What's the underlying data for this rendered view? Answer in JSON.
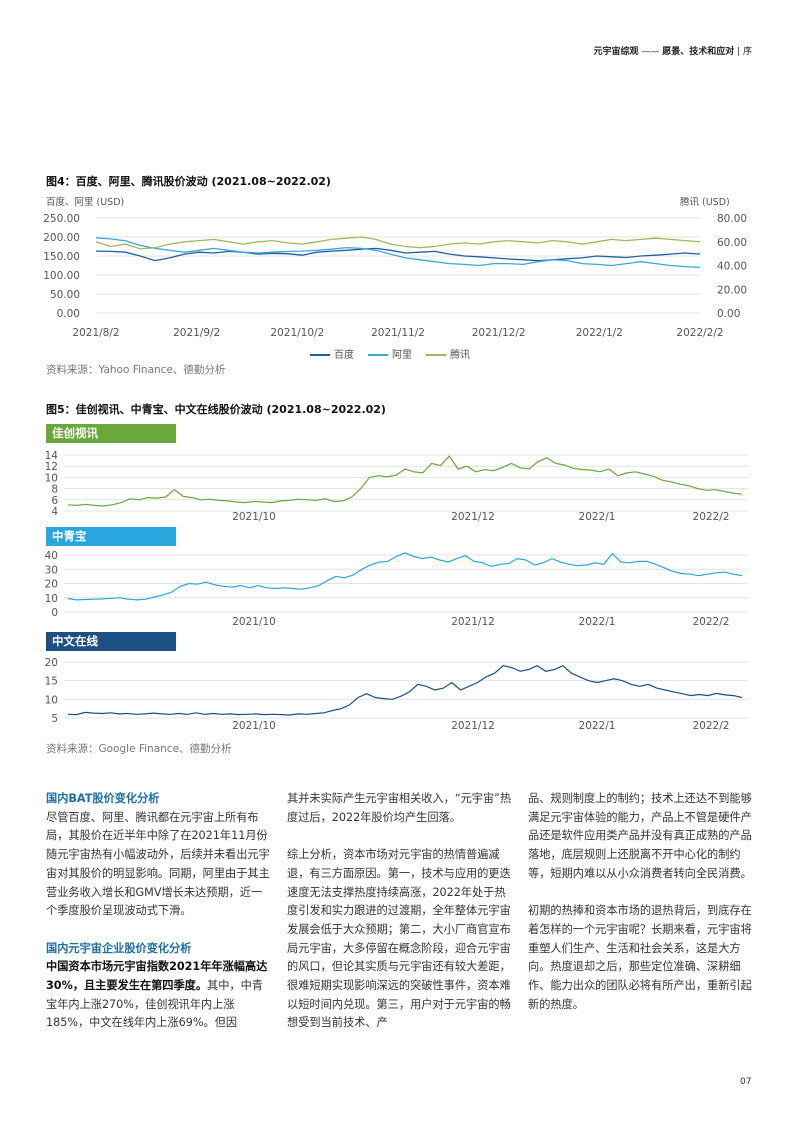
{
  "header": {
    "left": "元宇宙综观",
    "dash": " —— ",
    "right": "愿景、技术和应对",
    "sep": " | ",
    "section": "序"
  },
  "fig4": {
    "title": "图4：百度、阿里、腾讯股价波动 (2021.08~2022.02)",
    "left_axis_label": "百度、阿里 (USD)",
    "right_axis_label": "腾讯 (USD)",
    "source": "资料来源：Yahoo Finance、德勤分析"
  },
  "fig5": {
    "title": "图5：佳创视讯、中青宝、中文在线股价波动 (2021.08~2022.02)",
    "source": "资料来源：Google Finance、德勤分析",
    "tags": [
      "佳创视讯",
      "中青宝",
      "中文在线"
    ]
  },
  "colors": {
    "baidu": "#1f5f9e",
    "ali": "#3aa6dc",
    "tencent": "#9bbb59",
    "tag1": "#6aa83c",
    "tag2": "#29a6de",
    "tag3": "#1c4f84",
    "heading": "#1d6fa5",
    "grid": "#e3e3e3"
  },
  "chart_data": [
    {
      "type": "line",
      "title": "图4：百度、阿里、腾讯股价波动 (2021.08~2022.02)",
      "x_tick_labels": [
        "2021/8/2",
        "2021/9/2",
        "2021/10/2",
        "2021/11/2",
        "2021/12/2",
        "2022/1/2",
        "2022/2/2"
      ],
      "y_left_ticks": [
        "250.00",
        "200.00",
        "150.00",
        "100.00",
        "50.00",
        "0.00"
      ],
      "y_left_range": [
        0,
        250
      ],
      "y_right_ticks": [
        "80.00",
        "60.00",
        "40.00",
        "20.00",
        "0.00"
      ],
      "y_right_range": [
        0,
        80
      ],
      "grid": true,
      "legend": [
        "百度",
        "阿里",
        "腾讯"
      ],
      "series": [
        {
          "name": "百度",
          "axis": "left",
          "values": [
            163,
            162,
            160,
            150,
            138,
            145,
            155,
            160,
            158,
            162,
            160,
            155,
            157,
            156,
            152,
            160,
            163,
            165,
            168,
            170,
            165,
            158,
            160,
            162,
            155,
            150,
            148,
            145,
            142,
            140,
            138,
            140,
            143,
            145,
            150,
            148,
            146,
            150,
            152,
            155,
            158,
            155
          ]
        },
        {
          "name": "阿里",
          "axis": "left",
          "values": [
            198,
            195,
            190,
            178,
            170,
            165,
            160,
            165,
            170,
            165,
            160,
            158,
            160,
            162,
            163,
            165,
            168,
            172,
            170,
            165,
            155,
            145,
            140,
            135,
            130,
            128,
            125,
            130,
            130,
            128,
            135,
            140,
            138,
            130,
            128,
            125,
            130,
            135,
            130,
            125,
            122,
            120
          ]
        },
        {
          "name": "腾讯",
          "axis": "right",
          "values": [
            60,
            56,
            58,
            54,
            55,
            58,
            60,
            61,
            62,
            60,
            58,
            60,
            61,
            59,
            58,
            60,
            62,
            63,
            64,
            62,
            58,
            56,
            55,
            56,
            58,
            59,
            58,
            60,
            61,
            60,
            59,
            61,
            60,
            58,
            60,
            62,
            61,
            62,
            63,
            62,
            61,
            60
          ]
        }
      ]
    },
    {
      "type": "line",
      "title": "佳创视讯",
      "x_tick_labels": [
        "2021/10",
        "2021/12",
        "2022/1",
        "2022/2"
      ],
      "y_ticks": [
        "14",
        "12",
        "10",
        "8",
        "6",
        "4"
      ],
      "y_range": [
        4,
        14
      ],
      "grid": true,
      "series": [
        {
          "name": "佳创视讯",
          "values": [
            5.1,
            5.0,
            5.2,
            5.0,
            4.9,
            5.1,
            5.5,
            6.2,
            6.0,
            6.4,
            6.3,
            6.5,
            7.8,
            6.6,
            6.4,
            6.0,
            6.1,
            5.9,
            5.8,
            5.6,
            5.5,
            5.7,
            5.6,
            5.5,
            5.8,
            5.9,
            6.1,
            6.0,
            5.9,
            6.2,
            5.7,
            5.8,
            6.5,
            8.0,
            10.0,
            10.3,
            10.1,
            10.4,
            11.5,
            11.0,
            10.8,
            12.5,
            12.1,
            13.8,
            11.5,
            12.0,
            11.0,
            11.4,
            11.2,
            11.8,
            12.5,
            11.7,
            11.5,
            12.8,
            13.5,
            12.5,
            12.2,
            11.6,
            11.4,
            11.3,
            11.0,
            11.5,
            10.3,
            10.8,
            11.0,
            10.6,
            10.2,
            9.5,
            9.2,
            8.8,
            8.5,
            8.0,
            7.7,
            7.8,
            7.5,
            7.2,
            7.0
          ]
        }
      ]
    },
    {
      "type": "line",
      "title": "中青宝",
      "x_tick_labels": [
        "2021/10",
        "2021/12",
        "2022/1",
        "2022/2"
      ],
      "y_ticks": [
        "40",
        "30",
        "20",
        "10",
        "0"
      ],
      "y_range": [
        0,
        40
      ],
      "grid": true,
      "series": [
        {
          "name": "中青宝",
          "values": [
            9.5,
            8.5,
            8.8,
            9.0,
            9.2,
            9.6,
            10.0,
            9.0,
            8.5,
            9.0,
            10.5,
            12.0,
            14.0,
            18.0,
            20.0,
            19.5,
            21.0,
            19.0,
            18.0,
            17.5,
            18.5,
            17.0,
            18.5,
            17.0,
            16.5,
            17.0,
            16.5,
            16.0,
            17.0,
            18.5,
            22.0,
            25.0,
            24.0,
            26.0,
            30.0,
            33.0,
            35.0,
            35.5,
            39.0,
            41.5,
            39.0,
            37.5,
            38.5,
            36.5,
            35.0,
            37.5,
            39.5,
            35.5,
            34.5,
            32.0,
            33.5,
            34.0,
            37.5,
            36.5,
            33.0,
            34.5,
            37.5,
            35.0,
            33.5,
            32.5,
            33.0,
            34.5,
            33.5,
            41.0,
            35.0,
            34.5,
            35.5,
            35.5,
            33.5,
            31.0,
            28.5,
            27.0,
            26.5,
            25.5,
            26.5,
            27.5,
            28.0,
            26.5,
            25.5
          ]
        }
      ]
    },
    {
      "type": "line",
      "title": "中文在线",
      "x_tick_labels": [
        "2021/10",
        "2021/12",
        "2022/1",
        "2022/2"
      ],
      "y_ticks": [
        "20",
        "15",
        "10",
        "5"
      ],
      "y_range": [
        5,
        20
      ],
      "grid": true,
      "series": [
        {
          "name": "中文在线",
          "values": [
            6.0,
            5.9,
            6.5,
            6.3,
            6.2,
            6.4,
            6.1,
            6.2,
            6.0,
            6.1,
            6.3,
            6.1,
            6.0,
            6.2,
            6.0,
            6.4,
            6.0,
            6.2,
            6.0,
            6.1,
            5.9,
            6.0,
            6.1,
            5.9,
            6.0,
            5.9,
            5.8,
            6.1,
            6.0,
            6.2,
            6.4,
            7.0,
            7.5,
            8.5,
            10.5,
            11.5,
            10.5,
            10.2,
            10.0,
            10.8,
            12.0,
            14.0,
            13.5,
            12.5,
            13.0,
            14.5,
            12.5,
            13.5,
            14.5,
            16.0,
            17.0,
            19.0,
            18.5,
            17.5,
            18.0,
            19.0,
            17.5,
            18.0,
            19.0,
            17.0,
            16.0,
            15.0,
            14.5,
            15.0,
            15.5,
            15.0,
            14.0,
            13.5,
            14.0,
            13.0,
            12.5,
            12.0,
            11.5,
            11.0,
            11.3,
            11.0,
            11.6,
            11.2,
            11.0,
            10.5
          ]
        }
      ]
    }
  ],
  "body": {
    "col1": {
      "h1": "国内BAT股价变化分析",
      "p1": "尽管百度、阿里、腾讯都在元宇宙上所有布局，其股价在近半年中除了在2021年11月份随元宇宙热有小幅波动外，后续并未看出元宇宙对其股价的明显影响。同期，阿里由于其主营业务收入增长和GMV增长未达预期，近一个季度股价呈现波动式下滑。",
      "h2": "国内元宇宙企业股价变化分析",
      "p2_strong": "中国资本市场元宇宙指数2021年年涨幅高达30%，且主要发生在第四季度。",
      "p2": "其中，中青宝年内上涨270%，佳创视讯年内上涨185%，中文在线年内上涨69%。但因"
    },
    "col2": {
      "p1": "其并未实际产生元宇宙相关收入，“元宇宙”热度过后，2022年股价均产生回落。",
      "p2": "综上分析，资本市场对元宇宙的热情普遍减退，有三方面原因。第一，技术与应用的更迭速度无法支撑热度持续高涨，2022年处于热度引发和实力跟进的过渡期，全年整体元宇宙发展会低于大众预期；第二，大小厂商官宣布局元宇宙，大多停留在概念阶段，迎合元宇宙的风口，但论其实质与元宇宙还有较大差距，很难短期实现影响深远的突破性事件，资本难以短时间内兑现。第三，用户对于元宇宙的畅想受到当前技术、产"
    },
    "col3": {
      "p1": "品、规则制度上的制约；技术上还达不到能够满足元宇宙体验的能力，产品上不管是硬件产品还是软件应用类产品并没有真正成熟的产品落地，底层规则上还脱离不开中心化的制约等，短期内难以从小众消费者转向全民消费。",
      "p2": "初期的热捧和资本市场的退热背后，到底存在着怎样的一个元宇宙呢？长期来看，元宇宙将重塑人们生产、生活和社会关系，这是大方向。热度退却之后，那些定位准确、深耕细作、能力出众的团队必将有所产出，重新引起新的热度。"
    }
  },
  "page_number": "07"
}
